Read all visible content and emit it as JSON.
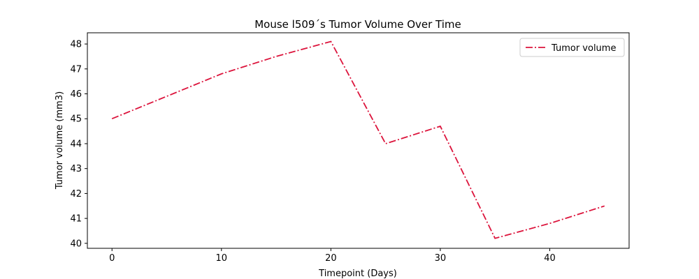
{
  "chart_data": {
    "type": "line",
    "title": "Mouse l509´s Tumor Volume Over Time",
    "xlabel": "Timepoint (Days)",
    "ylabel": "Tumor volume (mm3)",
    "x": [
      0,
      5,
      10,
      15,
      20,
      25,
      30,
      35,
      40,
      45
    ],
    "xlim": [
      -2.25,
      47.25
    ],
    "ylim": [
      39.8,
      48.45
    ],
    "xticks": [
      0,
      10,
      20,
      30,
      40
    ],
    "xtick_labels": [
      "0",
      "10",
      "20",
      "30",
      "40"
    ],
    "yticks": [
      40,
      41,
      42,
      43,
      44,
      45,
      46,
      47,
      48
    ],
    "ytick_labels": [
      "40",
      "41",
      "42",
      "43",
      "44",
      "45",
      "46",
      "47",
      "48"
    ],
    "grid": false,
    "legend_position": "top-right",
    "series": [
      {
        "name": "Tumor volume",
        "color": "#dc143c",
        "line_style": "dash-dot",
        "values": [
          45.0,
          45.9,
          46.8,
          47.5,
          48.1,
          44.0,
          44.7,
          40.2,
          40.8,
          41.5
        ]
      }
    ]
  }
}
